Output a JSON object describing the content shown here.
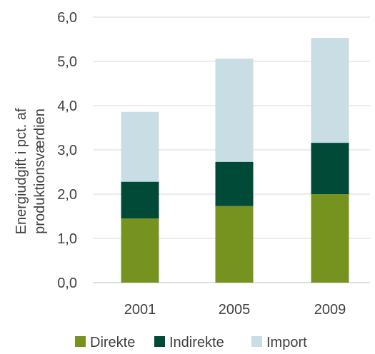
{
  "chart_data": {
    "type": "bar",
    "stacked": true,
    "categories": [
      "2001",
      "2005",
      "2009"
    ],
    "series": [
      {
        "name": "Direkte",
        "values": [
          1.45,
          1.73,
          2.0
        ],
        "color": "#77931f"
      },
      {
        "name": "Indirekte",
        "values": [
          0.83,
          1.0,
          1.16
        ],
        "color": "#004a37"
      },
      {
        "name": "Import",
        "values": [
          1.58,
          2.33,
          2.37
        ],
        "color": "#c9dde5"
      }
    ],
    "y_ticks": [
      "0,0",
      "1,0",
      "2,0",
      "3,0",
      "4,0",
      "5,0",
      "6,0"
    ],
    "ylabel_lines": [
      "Energiudgift i pct. af",
      "produktionsværdien"
    ],
    "ylim": [
      0,
      6
    ],
    "grid": true,
    "legend_position": "bottom"
  }
}
